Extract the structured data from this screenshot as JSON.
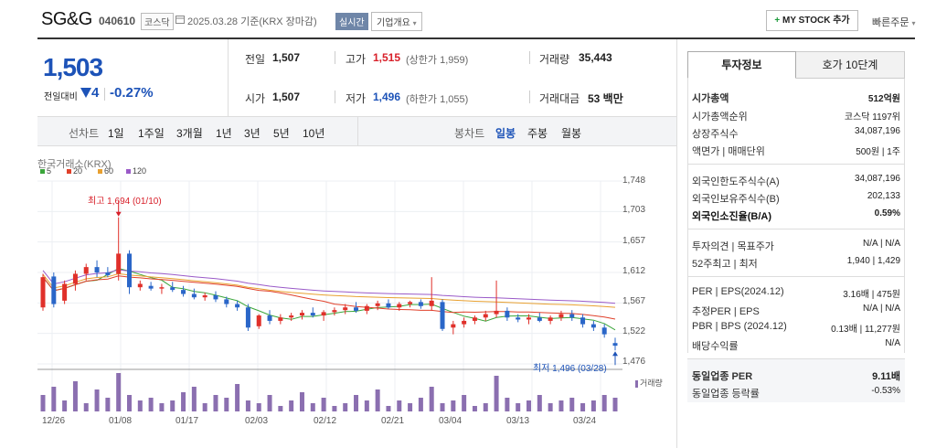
{
  "header": {
    "name": "SG&G",
    "code": "040610",
    "market": "코스닥",
    "date": "2025.03.28 기준(KRX 장마감)",
    "realtime": "실시간",
    "overview": "기업개요",
    "mystock": "MY STOCK 추가",
    "quick_order": "빠른주문"
  },
  "price": {
    "current": "1,503",
    "change_label": "전일대비",
    "change": "4",
    "change_pct": "-0.27%"
  },
  "stats": {
    "prev_label": "전일",
    "prev": "1,507",
    "high_label": "고가",
    "high": "1,515",
    "upper_limit": "(상한가 1,959)",
    "volume_label": "거래량",
    "volume": "35,443",
    "open_label": "시가",
    "open": "1,507",
    "low_label": "저가",
    "low": "1,496",
    "lower_limit": "(하한가 1,055)",
    "amount_label": "거래대금",
    "amount": "53 백만"
  },
  "toolbar": {
    "line_label": "선차트",
    "line_items": [
      "1일",
      "1주일",
      "3개월",
      "1년",
      "3년",
      "5년",
      "10년"
    ],
    "candle_label": "봉차트",
    "candle_items": [
      "일봉",
      "주봉",
      "월봉"
    ],
    "active_candle": "일봉"
  },
  "chart_labels": {
    "source": "한국거래소(KRX)",
    "ma": [
      {
        "name": "5",
        "color": "#3aa63a"
      },
      {
        "name": "20",
        "color": "#e0402a"
      },
      {
        "name": "60",
        "color": "#e8a030"
      },
      {
        "name": "120",
        "color": "#9a5ac8"
      }
    ],
    "high_note": "최고 1,694 (01/10)",
    "low_note": "최저 1,496 (03/28)",
    "volume_label": "거래량"
  },
  "chart_data": {
    "type": "candlestick",
    "ylim": [
      1476,
      1748
    ],
    "yticks": [
      "1,748",
      "1,703",
      "1,657",
      "1,612",
      "1,567",
      "1,522",
      "1,476"
    ],
    "xticks": [
      "12/26",
      "01/08",
      "01/17",
      "02/03",
      "02/12",
      "02/21",
      "03/04",
      "03/13",
      "03/24"
    ],
    "candles": [
      [
        1560,
        1610,
        1555,
        1605
      ],
      [
        1606,
        1612,
        1560,
        1565
      ],
      [
        1570,
        1600,
        1565,
        1595
      ],
      [
        1595,
        1615,
        1585,
        1610
      ],
      [
        1610,
        1625,
        1600,
        1620
      ],
      [
        1620,
        1630,
        1605,
        1612
      ],
      [
        1612,
        1620,
        1605,
        1608
      ],
      [
        1610,
        1694,
        1600,
        1640
      ],
      [
        1640,
        1645,
        1580,
        1590
      ],
      [
        1590,
        1600,
        1585,
        1595
      ],
      [
        1592,
        1598,
        1585,
        1588
      ],
      [
        1588,
        1595,
        1580,
        1590
      ],
      [
        1590,
        1598,
        1583,
        1586
      ],
      [
        1586,
        1592,
        1576,
        1580
      ],
      [
        1580,
        1588,
        1572,
        1575
      ],
      [
        1575,
        1582,
        1570,
        1578
      ],
      [
        1578,
        1584,
        1568,
        1572
      ],
      [
        1572,
        1576,
        1560,
        1565
      ],
      [
        1565,
        1570,
        1555,
        1560
      ],
      [
        1560,
        1565,
        1525,
        1530
      ],
      [
        1532,
        1550,
        1528,
        1548
      ],
      [
        1548,
        1556,
        1535,
        1540
      ],
      [
        1540,
        1550,
        1535,
        1545
      ],
      [
        1545,
        1552,
        1540,
        1548
      ],
      [
        1548,
        1556,
        1542,
        1552
      ],
      [
        1552,
        1560,
        1545,
        1548
      ],
      [
        1548,
        1556,
        1540,
        1553
      ],
      [
        1553,
        1560,
        1548,
        1556
      ],
      [
        1556,
        1565,
        1550,
        1560
      ],
      [
        1560,
        1568,
        1552,
        1555
      ],
      [
        1555,
        1565,
        1550,
        1562
      ],
      [
        1562,
        1570,
        1556,
        1566
      ],
      [
        1566,
        1572,
        1558,
        1560
      ],
      [
        1560,
        1568,
        1555,
        1565
      ],
      [
        1565,
        1570,
        1560,
        1568
      ],
      [
        1568,
        1572,
        1558,
        1562
      ],
      [
        1562,
        1605,
        1555,
        1570
      ],
      [
        1568,
        1572,
        1525,
        1528
      ],
      [
        1530,
        1540,
        1520,
        1535
      ],
      [
        1535,
        1545,
        1530,
        1540
      ],
      [
        1540,
        1548,
        1535,
        1545
      ],
      [
        1545,
        1555,
        1540,
        1550
      ],
      [
        1550,
        1600,
        1545,
        1555
      ],
      [
        1555,
        1560,
        1540,
        1545
      ],
      [
        1545,
        1550,
        1538,
        1542
      ],
      [
        1542,
        1550,
        1535,
        1545
      ],
      [
        1545,
        1552,
        1538,
        1540
      ],
      [
        1540,
        1548,
        1535,
        1545
      ],
      [
        1545,
        1555,
        1540,
        1550
      ],
      [
        1550,
        1556,
        1540,
        1545
      ],
      [
        1545,
        1550,
        1530,
        1535
      ],
      [
        1535,
        1540,
        1525,
        1530
      ],
      [
        1530,
        1535,
        1515,
        1520
      ],
      [
        1507,
        1515,
        1496,
        1503
      ]
    ],
    "volume": [
      6,
      9,
      4,
      11,
      3,
      8,
      5,
      14,
      6,
      4,
      5,
      3,
      4,
      7,
      9,
      3,
      6,
      5,
      10,
      4,
      3,
      6,
      2,
      4,
      7,
      3,
      5,
      2,
      3,
      6,
      4,
      8,
      2,
      4,
      3,
      5,
      9,
      3,
      4,
      6,
      2,
      3,
      13,
      5,
      3,
      4,
      6,
      3,
      4,
      5,
      3,
      4,
      6,
      5
    ]
  },
  "panel": {
    "tab1": "투자정보",
    "tab2": "호가 10단계",
    "rows1": [
      {
        "l": "시가총액",
        "r": "512억원"
      },
      {
        "l": "시가총액순위",
        "r": "코스닥 1197위"
      },
      {
        "l": "상장주식수",
        "r": "34,087,196"
      },
      {
        "l": "액면가 | 매매단위",
        "r": "500원 | 1주"
      }
    ],
    "rows2": [
      {
        "l": "외국인한도주식수(A)",
        "r": "34,087,196"
      },
      {
        "l": "외국인보유주식수(B)",
        "r": "202,133"
      },
      {
        "l": "외국인소진율(B/A)",
        "r": "0.59%"
      }
    ],
    "rows3": [
      {
        "l": "투자의견 | 목표주가",
        "r": "N/A | N/A"
      },
      {
        "l": "52주최고 | 최저",
        "r": "1,940 | 1,429"
      }
    ],
    "rows4": [
      {
        "l": "PER | EPS(2024.12)",
        "r": "3.16배 | 475원"
      },
      {
        "l": "추정PER | EPS",
        "r": "N/A | N/A"
      },
      {
        "l": "PBR | BPS (2024.12)",
        "r": "0.13배 | 11,277원"
      },
      {
        "l": "배당수익률",
        "r": "N/A"
      }
    ],
    "sector_per_label": "동일업종 PER",
    "sector_per": "9.11배",
    "sector_rate_label": "동일업종 등락률",
    "sector_rate": "-0.53%"
  }
}
